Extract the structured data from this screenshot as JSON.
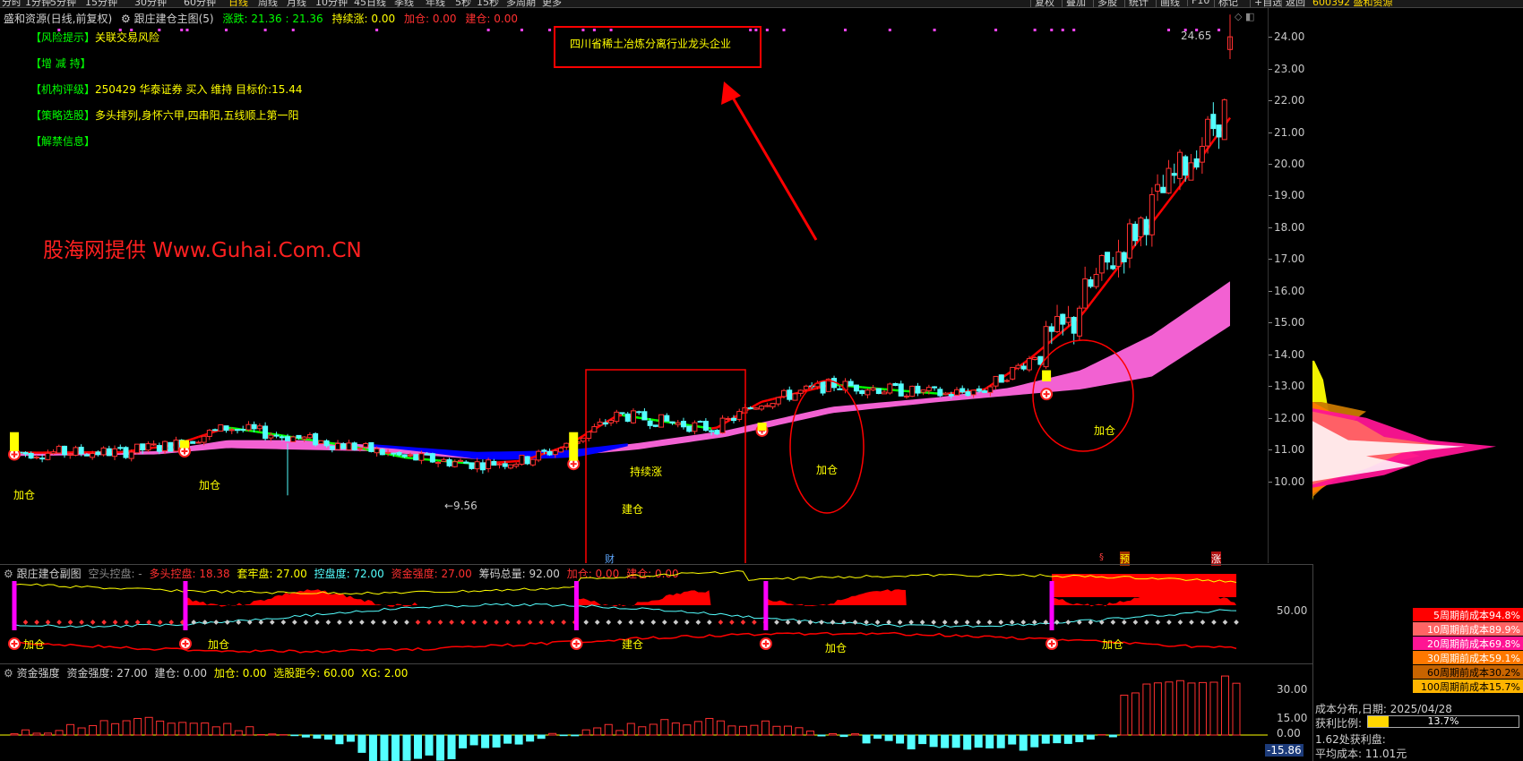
{
  "toolbar": {
    "left_items": [
      "分时",
      "1分钟",
      "5分钟",
      "15分钟",
      "30分钟",
      "60分钟",
      "日线",
      "周线",
      "月线",
      "10分钟",
      "45日线",
      "季线",
      "年线",
      "5秒",
      "15秒",
      "多周期",
      "更多"
    ],
    "active_item": "日线",
    "right_items": [
      "复权",
      "叠加",
      "多股",
      "统计",
      "画线",
      "F10",
      "标记",
      "+自选",
      "返回"
    ],
    "stock_title": "600392 盛和资源"
  },
  "main_header": {
    "stock": "盛和资源(日线,前复权)",
    "indicator": "跟庄建仓主图(5)",
    "zhangdie_label": "涨跌:",
    "zhangdie_value": "21.36 : 21.36",
    "chixu_label": "持续涨:",
    "chixu_value": "0.00",
    "jiacang_label": "加仓:",
    "jiacang_value": "0.00",
    "jiancang_label": "建仓:",
    "jiancang_value": "0.00"
  },
  "info_panel": [
    {
      "tag": "【风险提示】",
      "text": "关联交易风险"
    },
    {
      "tag": "【增 减 持】",
      "text": ""
    },
    {
      "tag": "【机构评级】",
      "text": "250429 华泰证券 买入 维持 目标价:15.44"
    },
    {
      "tag": "【策略选股】",
      "text": "多头排列,身怀六甲,四串阳,五线顺上第一阳"
    },
    {
      "tag": "【解禁信息】",
      "text": ""
    }
  ],
  "annotation_box": "四川省稀土冶炼分离行业龙头企业",
  "watermark": "股海网提供 Www.Guhai.Com.CN",
  "chart_labels": {
    "jiacang": "加仓",
    "jiancang": "建仓",
    "chixu": "持续涨",
    "low_price": "←9.56",
    "high_price": "24.65",
    "cai": "财",
    "yu": "预",
    "zhang": "涨",
    "jiu": "§"
  },
  "price_axis": {
    "ticks": [
      "24.00",
      "23.00",
      "22.00",
      "21.00",
      "20.00",
      "19.00",
      "18.00",
      "17.00",
      "16.00",
      "15.00",
      "14.00",
      "13.00",
      "12.00",
      "11.00",
      "10.00"
    ],
    "colors": {
      "up": "#ff3030",
      "down": "#54ffff",
      "ma_up": "#ff0000",
      "ma_down": "#00ff00",
      "band": "#ff66dd",
      "band_down": "#0000ff"
    }
  },
  "sub1": {
    "title": "跟庄建仓副图",
    "kongtou_label": "空头控盘: -",
    "duotou_label": "多头控盘: 18.38",
    "taolao_label": "套牢盘: 27.00",
    "kongpan_label": "控盘度: 72.00",
    "zijin_label": "资金强度: 27.00",
    "chouma_label": "筹码总量: 92.00",
    "jiacang_label": "加仓: 0.00",
    "jiancang_label": "建仓: 0.00",
    "axis_tick": "50.00"
  },
  "sub2": {
    "title": "资金强度",
    "zijin_label": "资金强度: 27.00",
    "jiancang_label": "建仓: 0.00",
    "jiacang_label": "加仓: 0.00",
    "xuangu_label": "选股距今: 60.00",
    "xg_label": "XG: 2.00",
    "ticks": [
      "30.00",
      "15.00",
      "0.00"
    ],
    "min_label": "-15.86"
  },
  "distribution": {
    "legend": [
      {
        "label": "5周期前成本94.8%",
        "color": "#ff0000"
      },
      {
        "label": "10周期前成本89.9%",
        "color": "#ff6464"
      },
      {
        "label": "20周期前成本69.8%",
        "color": "#ff1493"
      },
      {
        "label": "30周期前成本59.1%",
        "color": "#ff7800"
      },
      {
        "label": "60周期前成本30.2%",
        "color": "#c86400"
      },
      {
        "label": "100周期前成本15.7%",
        "color": "#ffb400"
      }
    ],
    "date_label": "成本分布,日期:",
    "date_value": "2025/04/28",
    "profit_label": "获利比例:",
    "profit_value": "13.7%",
    "profit_fraction": 0.137,
    "profit_price_label": "1.62处获利盘:",
    "avg_cost_label": "平均成本:",
    "avg_cost_value": "11.01元"
  }
}
